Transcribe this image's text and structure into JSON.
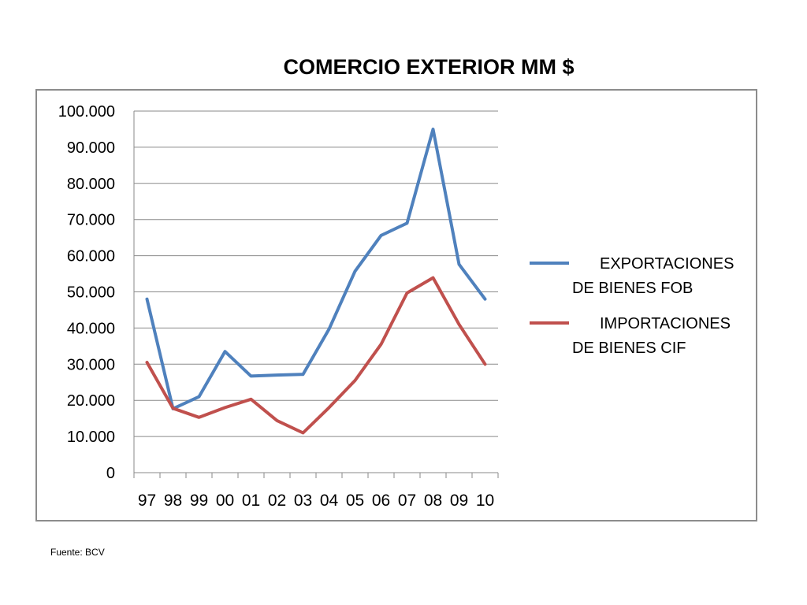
{
  "chart_data": {
    "type": "line",
    "title": "COMERCIO EXTERIOR MM $",
    "categories": [
      "97",
      "98",
      "99",
      "00",
      "01",
      "02",
      "03",
      "04",
      "05",
      "06",
      "07",
      "08",
      "09",
      "10"
    ],
    "y_tick_labels": [
      "0",
      "10.000",
      "20.000",
      "30.000",
      "40.000",
      "50.000",
      "60.000",
      "70.000",
      "80.000",
      "90.000",
      "100.000"
    ],
    "ylim": [
      0,
      100000
    ],
    "grid": true,
    "legend_position": "right",
    "series": [
      {
        "name_line1": "EXPORTACIONES",
        "name_line2": "DE BIENES FOB",
        "color": "#4f81bd",
        "values": [
          48000,
          17700,
          21000,
          33500,
          26700,
          27000,
          27200,
          39700,
          55700,
          65600,
          69000,
          95000,
          57600,
          48000
        ]
      },
      {
        "name_line1": "IMPORTACIONES",
        "name_line2": "DE BIENES CIF",
        "color": "#c0504d",
        "values": [
          30500,
          17800,
          15300,
          18000,
          20300,
          14400,
          11000,
          18000,
          25500,
          35500,
          49700,
          53900,
          41000,
          30000
        ]
      }
    ]
  },
  "footer": {
    "source": "Fuente: BCV"
  }
}
